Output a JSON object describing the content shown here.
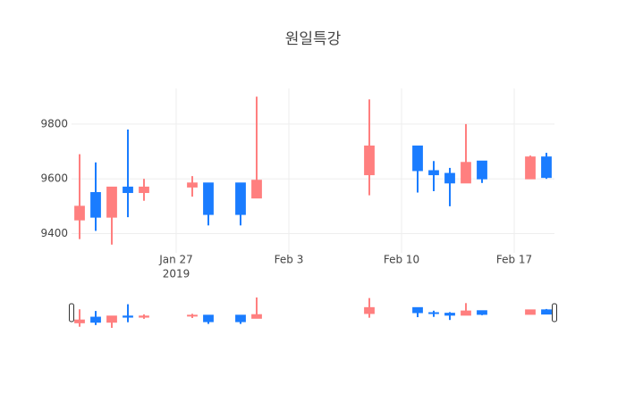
{
  "chart_data": {
    "type": "candlestick",
    "title": "원일특강",
    "x": [
      "2019-01-21",
      "2019-01-22",
      "2019-01-23",
      "2019-01-24",
      "2019-01-25",
      "2019-01-28",
      "2019-01-29",
      "2019-01-31",
      "2019-02-01",
      "2019-02-08",
      "2019-02-11",
      "2019-02-12",
      "2019-02-13",
      "2019-02-14",
      "2019-02-15",
      "2019-02-18",
      "2019-02-19"
    ],
    "open": [
      9450,
      9550,
      9460,
      9570,
      9550,
      9570,
      9585,
      9585,
      9530,
      9615,
      9720,
      9630,
      9620,
      9585,
      9665,
      9600,
      9680
    ],
    "high": [
      9690,
      9660,
      9570,
      9780,
      9600,
      9610,
      9585,
      9585,
      9900,
      9890,
      9720,
      9665,
      9640,
      9800,
      9665,
      9685,
      9695
    ],
    "low": [
      9380,
      9410,
      9360,
      9460,
      9520,
      9535,
      9430,
      9430,
      9530,
      9540,
      9550,
      9555,
      9500,
      9585,
      9585,
      9600,
      9600
    ],
    "close": [
      9500,
      9460,
      9570,
      9550,
      9570,
      9585,
      9470,
      9470,
      9595,
      9720,
      9630,
      9615,
      9585,
      9660,
      9600,
      9680,
      9605
    ],
    "increasing_color": "#ff7f7f",
    "decreasing_color": "#1a7cff",
    "xlim": [
      "2019-01-20T12:00:00Z",
      "2019-02-19T12:00:00Z"
    ],
    "xticks": [
      {
        "value": "2019-01-27",
        "label": "Jan 27"
      },
      {
        "value": "2019-02-03",
        "label": "Feb 3"
      },
      {
        "value": "2019-02-10",
        "label": "Feb 10"
      },
      {
        "value": "2019-02-17",
        "label": "Feb 17"
      }
    ],
    "x_year": "2019",
    "ylim": [
      9330,
      9930
    ],
    "yticks": [
      9400,
      9600,
      9800
    ],
    "grid": true,
    "rangeslider": true
  }
}
